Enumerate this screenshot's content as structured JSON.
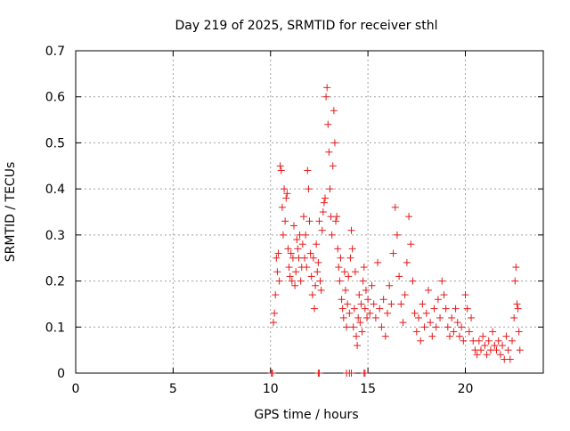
{
  "chart_data": {
    "type": "scatter",
    "title": "Day 219 of 2025, SRMTID for receiver sthl",
    "xlabel": "GPS time / hours",
    "ylabel": "SRMTID / TECUs",
    "xlim": [
      0,
      24
    ],
    "ylim": [
      0,
      0.7
    ],
    "xticks": [
      0,
      5,
      10,
      15,
      20
    ],
    "yticks": [
      0,
      0.1,
      0.2,
      0.3,
      0.4,
      0.5,
      0.6,
      0.7
    ],
    "ytick_labels": [
      "0",
      "0.1",
      "0.2",
      "0.3",
      "0.4",
      "0.5",
      "0.6",
      "0.7"
    ],
    "grid": true,
    "marker": "+",
    "colors": {
      "points": "#e41a1c",
      "axis": "#000000",
      "grid": "#a0a0a0"
    },
    "series": [
      {
        "name": "SRMTID",
        "points": [
          [
            10.05,
            0.0
          ],
          [
            10.1,
            0.0
          ],
          [
            12.45,
            0.0
          ],
          [
            12.5,
            0.0
          ],
          [
            13.9,
            0.0
          ],
          [
            14.05,
            0.0
          ],
          [
            14.15,
            0.0
          ],
          [
            14.8,
            0.0
          ],
          [
            14.85,
            0.0
          ],
          [
            10.15,
            0.11
          ],
          [
            10.2,
            0.13
          ],
          [
            10.25,
            0.17
          ],
          [
            10.3,
            0.25
          ],
          [
            10.35,
            0.22
          ],
          [
            10.4,
            0.26
          ],
          [
            10.45,
            0.2
          ],
          [
            10.5,
            0.45
          ],
          [
            10.55,
            0.44
          ],
          [
            10.6,
            0.36
          ],
          [
            10.65,
            0.3
          ],
          [
            10.7,
            0.4
          ],
          [
            10.75,
            0.33
          ],
          [
            10.8,
            0.38
          ],
          [
            10.85,
            0.39
          ],
          [
            10.9,
            0.27
          ],
          [
            10.95,
            0.23
          ],
          [
            11.0,
            0.21
          ],
          [
            11.05,
            0.26
          ],
          [
            11.1,
            0.2
          ],
          [
            11.15,
            0.25
          ],
          [
            11.2,
            0.32
          ],
          [
            11.25,
            0.19
          ],
          [
            11.3,
            0.22
          ],
          [
            11.35,
            0.29
          ],
          [
            11.4,
            0.27
          ],
          [
            11.45,
            0.25
          ],
          [
            11.5,
            0.3
          ],
          [
            11.55,
            0.2
          ],
          [
            11.6,
            0.23
          ],
          [
            11.65,
            0.28
          ],
          [
            11.7,
            0.34
          ],
          [
            11.75,
            0.25
          ],
          [
            11.8,
            0.3
          ],
          [
            11.85,
            0.23
          ],
          [
            11.9,
            0.44
          ],
          [
            11.95,
            0.4
          ],
          [
            12.0,
            0.33
          ],
          [
            12.05,
            0.26
          ],
          [
            12.1,
            0.21
          ],
          [
            12.15,
            0.17
          ],
          [
            12.2,
            0.25
          ],
          [
            12.25,
            0.14
          ],
          [
            12.3,
            0.19
          ],
          [
            12.35,
            0.28
          ],
          [
            12.4,
            0.22
          ],
          [
            12.45,
            0.24
          ],
          [
            12.5,
            0.33
          ],
          [
            12.55,
            0.2
          ],
          [
            12.6,
            0.18
          ],
          [
            12.65,
            0.31
          ],
          [
            12.7,
            0.35
          ],
          [
            12.75,
            0.37
          ],
          [
            12.8,
            0.38
          ],
          [
            12.85,
            0.6
          ],
          [
            12.9,
            0.62
          ],
          [
            12.95,
            0.54
          ],
          [
            13.0,
            0.48
          ],
          [
            13.05,
            0.4
          ],
          [
            13.1,
            0.34
          ],
          [
            13.15,
            0.3
          ],
          [
            13.2,
            0.45
          ],
          [
            13.25,
            0.57
          ],
          [
            13.3,
            0.5
          ],
          [
            13.35,
            0.33
          ],
          [
            13.4,
            0.34
          ],
          [
            13.45,
            0.27
          ],
          [
            13.5,
            0.23
          ],
          [
            13.55,
            0.2
          ],
          [
            13.6,
            0.25
          ],
          [
            13.65,
            0.16
          ],
          [
            13.7,
            0.14
          ],
          [
            13.75,
            0.12
          ],
          [
            13.8,
            0.22
          ],
          [
            13.85,
            0.18
          ],
          [
            13.9,
            0.1
          ],
          [
            13.95,
            0.15
          ],
          [
            14.0,
            0.21
          ],
          [
            14.05,
            0.13
          ],
          [
            14.1,
            0.25
          ],
          [
            14.15,
            0.31
          ],
          [
            14.2,
            0.27
          ],
          [
            14.25,
            0.1
          ],
          [
            14.3,
            0.14
          ],
          [
            14.35,
            0.22
          ],
          [
            14.4,
            0.08
          ],
          [
            14.45,
            0.06
          ],
          [
            14.5,
            0.12
          ],
          [
            14.55,
            0.17
          ],
          [
            14.6,
            0.11
          ],
          [
            14.65,
            0.15
          ],
          [
            14.7,
            0.09
          ],
          [
            14.75,
            0.2
          ],
          [
            14.8,
            0.23
          ],
          [
            14.85,
            0.14
          ],
          [
            14.9,
            0.18
          ],
          [
            14.95,
            0.12
          ],
          [
            15.0,
            0.16
          ],
          [
            15.1,
            0.13
          ],
          [
            15.2,
            0.19
          ],
          [
            15.3,
            0.15
          ],
          [
            15.4,
            0.12
          ],
          [
            15.5,
            0.24
          ],
          [
            15.6,
            0.14
          ],
          [
            15.7,
            0.1
          ],
          [
            15.8,
            0.16
          ],
          [
            15.9,
            0.08
          ],
          [
            16.0,
            0.13
          ],
          [
            16.1,
            0.19
          ],
          [
            16.2,
            0.15
          ],
          [
            16.3,
            0.26
          ],
          [
            16.4,
            0.36
          ],
          [
            16.5,
            0.3
          ],
          [
            16.6,
            0.21
          ],
          [
            16.7,
            0.15
          ],
          [
            16.8,
            0.11
          ],
          [
            16.9,
            0.17
          ],
          [
            17.0,
            0.24
          ],
          [
            17.1,
            0.34
          ],
          [
            17.2,
            0.28
          ],
          [
            17.3,
            0.2
          ],
          [
            17.4,
            0.13
          ],
          [
            17.5,
            0.09
          ],
          [
            17.6,
            0.12
          ],
          [
            17.7,
            0.07
          ],
          [
            17.8,
            0.15
          ],
          [
            17.9,
            0.1
          ],
          [
            18.0,
            0.13
          ],
          [
            18.1,
            0.18
          ],
          [
            18.2,
            0.11
          ],
          [
            18.3,
            0.08
          ],
          [
            18.4,
            0.14
          ],
          [
            18.5,
            0.1
          ],
          [
            18.6,
            0.16
          ],
          [
            18.7,
            0.12
          ],
          [
            18.8,
            0.2
          ],
          [
            18.9,
            0.17
          ],
          [
            19.0,
            0.14
          ],
          [
            19.1,
            0.1
          ],
          [
            19.2,
            0.08
          ],
          [
            19.3,
            0.12
          ],
          [
            19.4,
            0.09
          ],
          [
            19.5,
            0.14
          ],
          [
            19.6,
            0.11
          ],
          [
            19.7,
            0.08
          ],
          [
            19.8,
            0.1
          ],
          [
            19.9,
            0.07
          ],
          [
            20.0,
            0.17
          ],
          [
            20.1,
            0.14
          ],
          [
            20.2,
            0.09
          ],
          [
            20.3,
            0.12
          ],
          [
            20.4,
            0.07
          ],
          [
            20.5,
            0.05
          ],
          [
            20.6,
            0.04
          ],
          [
            20.7,
            0.07
          ],
          [
            20.8,
            0.05
          ],
          [
            20.9,
            0.08
          ],
          [
            21.0,
            0.06
          ],
          [
            21.1,
            0.04
          ],
          [
            21.2,
            0.07
          ],
          [
            21.3,
            0.05
          ],
          [
            21.4,
            0.09
          ],
          [
            21.5,
            0.06
          ],
          [
            21.6,
            0.05
          ],
          [
            21.7,
            0.07
          ],
          [
            21.8,
            0.04
          ],
          [
            21.9,
            0.06
          ],
          [
            22.0,
            0.03
          ],
          [
            22.1,
            0.08
          ],
          [
            22.2,
            0.05
          ],
          [
            22.3,
            0.03
          ],
          [
            22.4,
            0.07
          ],
          [
            22.5,
            0.12
          ],
          [
            22.55,
            0.2
          ],
          [
            22.6,
            0.23
          ],
          [
            22.65,
            0.15
          ],
          [
            22.7,
            0.14
          ],
          [
            22.75,
            0.09
          ],
          [
            22.8,
            0.05
          ]
        ]
      }
    ]
  }
}
